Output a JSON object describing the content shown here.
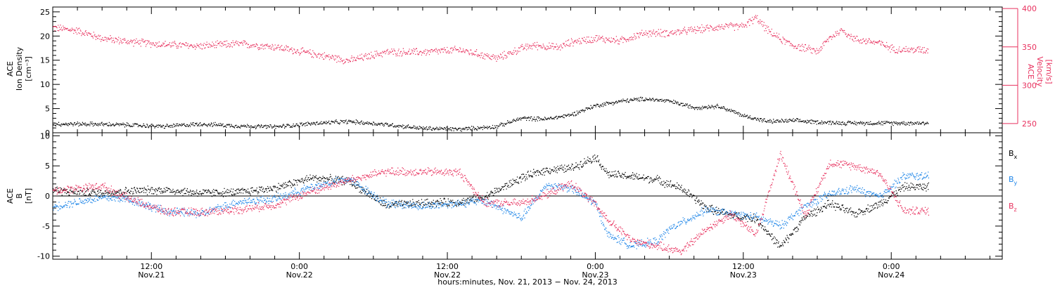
{
  "colors": {
    "black": "#000000",
    "pink": "#e8325f",
    "blue": "#1f86e8"
  },
  "chart_data": [
    {
      "type": "scatter",
      "panel": "top",
      "ylabel_left": [
        "ACE",
        "Ion Density",
        "[cm⁻³]"
      ],
      "ylabel_right": [
        "ACE",
        "Velocity",
        "[km/s]"
      ],
      "ylim_left": [
        0,
        26
      ],
      "ylim_right": [
        238,
        402
      ],
      "left_ticks": [
        0,
        5,
        10,
        15,
        20,
        25
      ],
      "right_ticks": [
        250,
        300,
        350,
        400
      ],
      "series": [
        {
          "axis": "left",
          "color": "#000000",
          "points": [
            [
              0,
              1.8
            ],
            [
              6,
              1.8
            ],
            [
              12,
              1.6
            ],
            [
              18,
              1.3
            ],
            [
              24,
              1.8
            ],
            [
              30,
              1.4
            ],
            [
              36,
              1.2
            ],
            [
              42,
              1.9
            ],
            [
              48,
              2.3
            ],
            [
              54,
              1.7
            ],
            [
              60,
              0.9
            ],
            [
              66,
              0.7
            ],
            [
              72,
              1.3
            ],
            [
              76,
              3.0
            ],
            [
              80,
              2.8
            ],
            [
              84,
              3.7
            ],
            [
              88,
              5.6
            ],
            [
              92,
              6.5
            ],
            [
              96,
              7.0
            ],
            [
              100,
              6.5
            ],
            [
              104,
              5.2
            ],
            [
              108,
              5.5
            ],
            [
              112,
              3.5
            ],
            [
              116,
              2.3
            ],
            [
              120,
              2.5
            ],
            [
              124,
              2.2
            ],
            [
              128,
              2.0
            ],
            [
              132,
              2.0
            ]
          ]
        },
        {
          "axis": "right",
          "color": "#e8325f",
          "points": [
            [
              0,
              375
            ],
            [
              4,
              371
            ],
            [
              8,
              361
            ],
            [
              12,
              357
            ],
            [
              18,
              353
            ],
            [
              24,
              351
            ],
            [
              30,
              354
            ],
            [
              36,
              350
            ],
            [
              42,
              341
            ],
            [
              48,
              332
            ],
            [
              54,
              343
            ],
            [
              60,
              343
            ],
            [
              66,
              346
            ],
            [
              72,
              335
            ],
            [
              76,
              348
            ],
            [
              78,
              352
            ],
            [
              82,
              349
            ],
            [
              84,
              356
            ],
            [
              88,
              361
            ],
            [
              92,
              358
            ],
            [
              96,
              368
            ],
            [
              100,
              368
            ],
            [
              104,
              372
            ],
            [
              108,
              376
            ],
            [
              112,
              377
            ],
            [
              114,
              388
            ],
            [
              116,
              371
            ],
            [
              118,
              360
            ],
            [
              120,
              352
            ],
            [
              124,
              344
            ],
            [
              126,
              362
            ],
            [
              128,
              372
            ],
            [
              130,
              360
            ],
            [
              134,
              355
            ],
            [
              136,
              348
            ],
            [
              138,
              346
            ]
          ]
        }
      ]
    },
    {
      "type": "scatter",
      "panel": "bottom",
      "ylabel": [
        "ACE",
        "B",
        "[nT]"
      ],
      "ylim": [
        -10.5,
        10.5
      ],
      "ticks": [
        -10,
        -5,
        0,
        5,
        10
      ],
      "legend_placement": "right",
      "series": [
        {
          "name_main": "B",
          "name_sub": "x",
          "color": "#000000",
          "points": [
            [
              0,
              1.0
            ],
            [
              4,
              0.6
            ],
            [
              8,
              0.6
            ],
            [
              12,
              0.8
            ],
            [
              18,
              1.0
            ],
            [
              24,
              0.5
            ],
            [
              30,
              0.6
            ],
            [
              36,
              1.3
            ],
            [
              42,
              3.0
            ],
            [
              48,
              2.5
            ],
            [
              54,
              -1.6
            ],
            [
              60,
              -1.2
            ],
            [
              66,
              -1.0
            ],
            [
              70,
              -0.2
            ],
            [
              76,
              3.0
            ],
            [
              80,
              4.3
            ],
            [
              84,
              4.6
            ],
            [
              88,
              6.5
            ],
            [
              90,
              3.6
            ],
            [
              94,
              3.2
            ],
            [
              98,
              2.7
            ],
            [
              102,
              1.2
            ],
            [
              106,
              -2.0
            ],
            [
              110,
              -3.2
            ],
            [
              114,
              -3.8
            ],
            [
              118,
              -8.5
            ],
            [
              122,
              -3.5
            ],
            [
              126,
              -1.3
            ],
            [
              130,
              -3.0
            ],
            [
              134,
              -1.4
            ],
            [
              138,
              1.5
            ]
          ]
        },
        {
          "name_main": "B",
          "name_sub": "y",
          "color": "#1f86e8",
          "points": [
            [
              0,
              -1.8
            ],
            [
              4,
              -1.0
            ],
            [
              8,
              -0.3
            ],
            [
              12,
              -0.5
            ],
            [
              18,
              -2.5
            ],
            [
              24,
              -3.0
            ],
            [
              30,
              -1.0
            ],
            [
              36,
              -0.5
            ],
            [
              42,
              1.5
            ],
            [
              48,
              2.8
            ],
            [
              54,
              -1.2
            ],
            [
              60,
              -1.7
            ],
            [
              66,
              -1.2
            ],
            [
              70,
              -0.8
            ],
            [
              76,
              -3.7
            ],
            [
              80,
              1.8
            ],
            [
              84,
              1.3
            ],
            [
              88,
              -1.3
            ],
            [
              90,
              -6.5
            ],
            [
              94,
              -8.3
            ],
            [
              98,
              -7.5
            ],
            [
              100,
              -5.5
            ],
            [
              106,
              -2.3
            ],
            [
              110,
              -3.0
            ],
            [
              114,
              -3.5
            ],
            [
              118,
              -5.0
            ],
            [
              122,
              -1.7
            ],
            [
              126,
              0.3
            ],
            [
              130,
              1.2
            ],
            [
              134,
              -0.2
            ],
            [
              138,
              3.3
            ]
          ]
        },
        {
          "name_main": "B",
          "name_sub": "z",
          "color": "#e8325f",
          "points": [
            [
              0,
              0.8
            ],
            [
              4,
              1.3
            ],
            [
              8,
              1.6
            ],
            [
              12,
              -0.3
            ],
            [
              18,
              -2.6
            ],
            [
              24,
              -2.7
            ],
            [
              30,
              -2.3
            ],
            [
              36,
              -1.5
            ],
            [
              42,
              0.8
            ],
            [
              48,
              2.6
            ],
            [
              54,
              4.0
            ],
            [
              60,
              4.0
            ],
            [
              66,
              3.9
            ],
            [
              70,
              -1.2
            ],
            [
              76,
              -1.2
            ],
            [
              80,
              0.2
            ],
            [
              84,
              2.1
            ],
            [
              88,
              -1.5
            ],
            [
              90,
              -4.0
            ],
            [
              94,
              -7.5
            ],
            [
              98,
              -8.3
            ],
            [
              102,
              -9.2
            ],
            [
              106,
              -5.5
            ],
            [
              110,
              -3.0
            ],
            [
              114,
              -6.5
            ],
            [
              118,
              7.0
            ],
            [
              122,
              -3.2
            ],
            [
              126,
              5.5
            ],
            [
              130,
              5.0
            ],
            [
              134,
              3.8
            ],
            [
              138,
              -2.5
            ]
          ]
        }
      ]
    }
  ],
  "time_axis": {
    "major_ticks": [
      {
        "hour": 8,
        "line1": "12:00",
        "line2": "Nov.21"
      },
      {
        "hour": 20,
        "line1": "0:00",
        "line2": "Nov.22"
      },
      {
        "hour": 32,
        "line1": "12:00",
        "line2": "Nov.22"
      },
      {
        "hour": 44,
        "line1": "0:00",
        "line2": "Nov.23"
      },
      {
        "hour": 56,
        "line1": "12:00",
        "line2": "Nov.23"
      },
      {
        "hour": 68,
        "line1": "0:00",
        "line2": "Nov.24"
      }
    ],
    "xlim_hours": [
      0,
      77
    ],
    "data_end_hour": 71,
    "title": "hours:minutes, Nov. 21, 2013 − Nov. 24, 2013"
  }
}
